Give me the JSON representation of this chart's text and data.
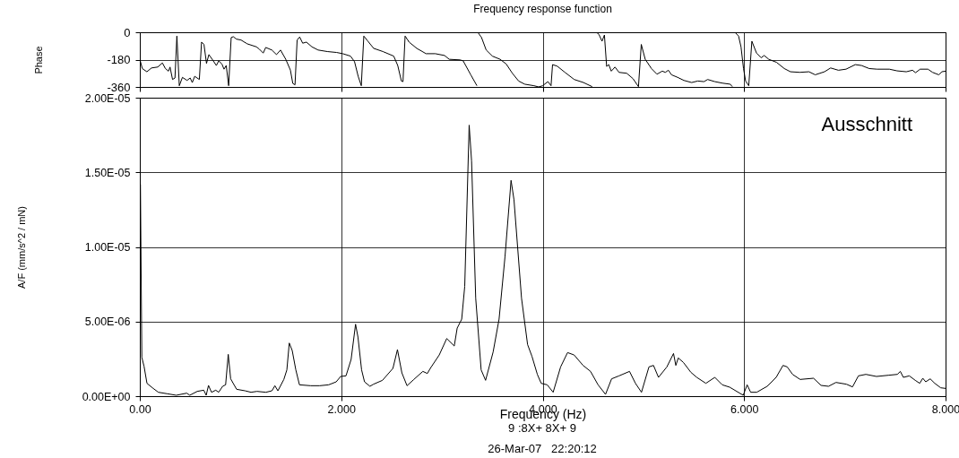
{
  "chart_data": [
    {
      "type": "line",
      "title": "Frequency response function",
      "ylabel": "Phase",
      "xlim": [
        0,
        8
      ],
      "xticks": [
        0,
        2,
        4,
        6,
        8
      ],
      "ylim": [
        -360,
        0
      ],
      "yticks": [
        -360,
        -180,
        0
      ],
      "grid": true,
      "tick_labels": "y",
      "series": [
        {
          "color": "#000000",
          "x": [
            0,
            0.025,
            0.07,
            0.116,
            0.178,
            0.224,
            0.254,
            0.285,
            0.3,
            0.325,
            0.349,
            0.368,
            0.392,
            0.423,
            0.469,
            0.5,
            0.521,
            0.545,
            0.591,
            0.613,
            0.637,
            0.662,
            0.686,
            0.729,
            0.76,
            0.784,
            0.815,
            0.836,
            0.858,
            0.882,
            0.907,
            0.928,
            0.959,
            1.005,
            1.066,
            1.158,
            1.188,
            1.225,
            1.25,
            1.311,
            1.357,
            1.397,
            1.449,
            1.495,
            1.519,
            1.541,
            1.562,
            1.587,
            1.617,
            1.654,
            1.709,
            1.77,
            1.862,
            1.954,
            2.015,
            2.092,
            2.132,
            2.168,
            2.199,
            2.224,
            2.26,
            2.322,
            2.414,
            2.521,
            2.561,
            2.597,
            2.613,
            2.634,
            2.674,
            2.75,
            2.842,
            2.934,
            3.026,
            3.072,
            3.18,
            3.21,
            3.286,
            3.347
          ],
          "values": [
            -178,
            -239,
            -260,
            -235,
            -229,
            -202,
            -239,
            -256,
            -229,
            -311,
            -301,
            -25,
            -352,
            -297,
            -317,
            -301,
            -331,
            -290,
            -311,
            -65,
            -80,
            -205,
            -147,
            -188,
            -219,
            -188,
            -209,
            -243,
            -219,
            -352,
            -35,
            -29,
            -45,
            -51,
            -76,
            -96,
            -112,
            -137,
            -100,
            -117,
            -147,
            -117,
            -178,
            -249,
            -337,
            -346,
            -51,
            -31,
            -72,
            -65,
            -96,
            -117,
            -127,
            -133,
            -141,
            -157,
            -194,
            -290,
            -352,
            -25,
            -55,
            -106,
            -127,
            -157,
            -219,
            -321,
            -325,
            -25,
            -65,
            -106,
            -141,
            -141,
            -153,
            -178,
            -182,
            -188,
            -280,
            -352
          ]
        },
        {
          "color": "#000000",
          "x": [
            3.356,
            3.393,
            3.439,
            3.5,
            3.577,
            3.638,
            3.699,
            3.761,
            3.822,
            3.914,
            3.96,
            4.0,
            4.052,
            4.083,
            4.098,
            4.144,
            4.221,
            4.313,
            4.405,
            4.491
          ],
          "values": [
            0,
            -35,
            -117,
            -157,
            -178,
            -209,
            -270,
            -321,
            -342,
            -352,
            -360,
            -352,
            -325,
            -352,
            -213,
            -223,
            -264,
            -311,
            -331,
            -358
          ]
        },
        {
          "color": "#000000",
          "x": [
            4.534,
            4.558,
            4.589,
            4.613,
            4.635,
            4.656,
            4.681,
            4.718,
            4.758,
            4.834,
            4.896,
            4.951,
            4.979,
            5.018,
            5.08,
            5.135,
            5.187,
            5.218,
            5.248,
            5.279,
            5.34,
            5.402,
            5.479,
            5.54,
            5.601,
            5.638,
            5.709,
            5.785,
            5.862,
            5.883
          ],
          "values": [
            0,
            -14,
            -59,
            -18,
            -225,
            -213,
            -256,
            -229,
            -264,
            -270,
            -305,
            -358,
            -80,
            -178,
            -239,
            -276,
            -256,
            -264,
            -250,
            -280,
            -297,
            -317,
            -331,
            -321,
            -325,
            -311,
            -325,
            -335,
            -342,
            -358
          ]
        },
        {
          "color": "#000000",
          "x": [
            5.908,
            5.945,
            5.969,
            5.994,
            6.015,
            6.046,
            6.077,
            6.123,
            6.169,
            6.199,
            6.245,
            6.322,
            6.399,
            6.46,
            6.552,
            6.644,
            6.706,
            6.798,
            6.859,
            6.936,
            7.012,
            7.104,
            7.166,
            7.242,
            7.319,
            7.442,
            7.518,
            7.61,
            7.672,
            7.702,
            7.748,
            7.825,
            7.871,
            7.933,
            7.963,
            8.0
          ],
          "values": [
            0,
            -25,
            -96,
            -239,
            -321,
            -352,
            -59,
            -137,
            -168,
            -153,
            -178,
            -198,
            -239,
            -260,
            -264,
            -260,
            -280,
            -260,
            -235,
            -250,
            -243,
            -213,
            -219,
            -239,
            -243,
            -243,
            -254,
            -260,
            -250,
            -266,
            -243,
            -243,
            -264,
            -280,
            -260,
            -256
          ]
        }
      ]
    },
    {
      "type": "line",
      "xlabel": "Frequency (Hz)",
      "ylabel": "A/F (mm/s^2 / mN)",
      "xlim": [
        0,
        8
      ],
      "xticks": [
        {
          "value": 0,
          "label": "0.00"
        },
        {
          "value": 2,
          "label": "2.000"
        },
        {
          "value": 4,
          "label": "4.000"
        },
        {
          "value": 6,
          "label": "6.000"
        },
        {
          "value": 8,
          "label": "8.000"
        }
      ],
      "ylim": [
        0,
        2e-05
      ],
      "yticks": [
        {
          "value": 0,
          "label": "0.00E+00"
        },
        {
          "value": 5e-06,
          "label": "5.00E-06"
        },
        {
          "value": 1e-05,
          "label": "1.00E-05"
        },
        {
          "value": 1.5e-05,
          "label": "1.50E-05"
        },
        {
          "value": 2e-05,
          "label": "2.00E-05"
        }
      ],
      "grid": true,
      "annotations": [
        "Ausschnitt",
        "9 :8X+ 8X+ 9",
        "26-Mar-07   22:20:12"
      ],
      "x": [
        0.006,
        0.02,
        0.042,
        0.071,
        0.125,
        0.184,
        0.273,
        0.362,
        0.466,
        0.496,
        0.57,
        0.635,
        0.659,
        0.682,
        0.712,
        0.754,
        0.783,
        0.822,
        0.852,
        0.878,
        0.902,
        0.961,
        1.045,
        1.104,
        1.163,
        1.252,
        1.312,
        1.341,
        1.371,
        1.43,
        1.46,
        1.484,
        1.513,
        1.549,
        1.585,
        1.697,
        1.786,
        1.875,
        1.95,
        1.994,
        2.047,
        2.098,
        2.142,
        2.166,
        2.202,
        2.231,
        2.285,
        2.32,
        2.409,
        2.513,
        2.558,
        2.602,
        2.653,
        2.721,
        2.81,
        2.855,
        2.884,
        2.973,
        3.047,
        3.122,
        3.151,
        3.196,
        3.226,
        3.27,
        3.294,
        3.335,
        3.389,
        3.433,
        3.508,
        3.567,
        3.626,
        3.686,
        3.715,
        3.79,
        3.85,
        3.894,
        3.947,
        3.985,
        4.045,
        4.104,
        4.178,
        4.247,
        4.312,
        4.401,
        4.475,
        4.55,
        4.624,
        4.684,
        4.758,
        4.862,
        4.921,
        4.981,
        5.055,
        5.1,
        5.15,
        5.233,
        5.299,
        5.322,
        5.346,
        5.397,
        5.471,
        5.53,
        5.62,
        5.709,
        5.783,
        5.857,
        5.991,
        6.03,
        6.065,
        6.125,
        6.229,
        6.318,
        6.386,
        6.428,
        6.481,
        6.556,
        6.689,
        6.764,
        6.838,
        6.912,
        7.016,
        7.076,
        7.135,
        7.209,
        7.314,
        7.432,
        7.521,
        7.551,
        7.581,
        7.64,
        7.699,
        7.744,
        7.774,
        7.803,
        7.848,
        7.893,
        7.952,
        8.0
      ],
      "series": [
        {
          "color": "#000000",
          "values": [
            1.42e-05,
            2.6e-06,
            2e-06,
            8.6e-07,
            5.6e-07,
            2.6e-07,
            1.6e-07,
            6e-08,
            2e-07,
            6e-08,
            3.2e-07,
            4e-07,
            6e-08,
            7.2e-07,
            2.6e-07,
            4e-07,
            2.6e-07,
            6.6e-07,
            7.6e-07,
            2.8e-06,
            1.16e-06,
            4.6e-07,
            3.6e-07,
            2.6e-07,
            3.2e-07,
            2.6e-07,
            3.6e-07,
            7e-07,
            3.6e-07,
            1.12e-06,
            1.76e-06,
            3.56e-06,
            3.06e-06,
            1.76e-06,
            7.6e-07,
            7e-07,
            7e-07,
            7.6e-07,
            9.6e-07,
            1.32e-06,
            1.36e-06,
            2.46e-06,
            4.82e-06,
            3.96e-06,
            1.76e-06,
            9.6e-07,
            6.6e-07,
            8e-07,
            1.06e-06,
            1.86e-06,
            3.12e-06,
            1.56e-06,
            7e-07,
            1.12e-06,
            1.66e-06,
            1.52e-06,
            1.86e-06,
            2.76e-06,
            3.86e-06,
            3.36e-06,
            4.56e-06,
            5.16e-06,
            7.36e-06,
            1.816e-05,
            1.576e-05,
            6.56e-06,
            1.76e-06,
            1.06e-06,
            2.96e-06,
            5.16e-06,
            9.36e-06,
            1.446e-05,
            1.316e-05,
            6.56e-06,
            3.46e-06,
            2.66e-06,
            1.46e-06,
            8.6e-07,
            7.6e-07,
            2.6e-07,
            1.96e-06,
            2.92e-06,
            2.76e-06,
            2.06e-06,
            1.66e-06,
            7.6e-07,
            1.2e-07,
            1.16e-06,
            1.36e-06,
            1.66e-06,
            8.6e-07,
            2.6e-07,
            1.96e-06,
            2.06e-06,
            1.26e-06,
            1.96e-06,
            2.86e-06,
            2.06e-06,
            2.56e-06,
            2.26e-06,
            1.6e-06,
            1.26e-06,
            8.6e-07,
            1.26e-06,
            7.6e-07,
            6e-07,
            6e-08,
            7.6e-07,
            2.6e-07,
            2.6e-07,
            6.6e-07,
            1.26e-06,
            2.06e-06,
            1.96e-06,
            1.46e-06,
            1.12e-06,
            1.2e-06,
            7.2e-07,
            6.6e-07,
            9.2e-07,
            8e-07,
            6.2e-07,
            1.36e-06,
            1.46e-06,
            1.32e-06,
            1.4e-06,
            1.46e-06,
            1.66e-06,
            1.26e-06,
            1.36e-06,
            1.06e-06,
            8.6e-07,
            1.2e-06,
            9.6e-07,
            1.16e-06,
            8.6e-07,
            5.6e-07,
            5.2e-07
          ]
        }
      ]
    }
  ]
}
